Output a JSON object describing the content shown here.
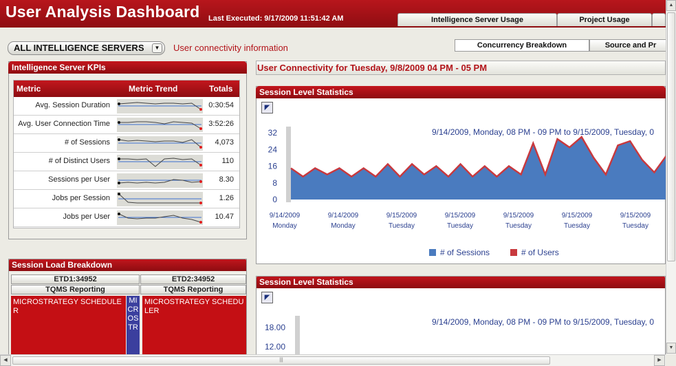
{
  "header": {
    "title": "User Analysis Dashboard",
    "last_executed": "Last Executed:  9/17/2009 11:51:42 AM",
    "tabs": [
      "Intelligence Server Usage",
      "Project Usage",
      ""
    ]
  },
  "selector": {
    "value": "ALL INTELLIGENCE SERVERS",
    "dropdown_icon": "chevron-down-icon"
  },
  "connectivity_link": "User connectivity information",
  "subtabs": [
    "Concurrency Breakdown",
    "Source and Pr"
  ],
  "kpi_panel": {
    "title": "Intelligence Server KPIs",
    "columns": [
      "Metric",
      "Metric Trend",
      "Totals"
    ],
    "rows": [
      {
        "metric": "Avg. Session Duration",
        "total": "0:30:54"
      },
      {
        "metric": "Avg. User Connection Time",
        "total": "3:52:26"
      },
      {
        "metric": "# of Sessions",
        "total": "4,073"
      },
      {
        "metric": "# of Distinct Users",
        "total": "110"
      },
      {
        "metric": "Sessions per User",
        "total": "8.30"
      },
      {
        "metric": "Jobs per Session",
        "total": "1.26"
      },
      {
        "metric": "Jobs per User",
        "total": "10.47"
      }
    ]
  },
  "connectivity_title": "User Connectivity for Tuesday, 9/8/2009 04 PM - 05 PM",
  "session_chart_1": {
    "title": "Session Level Statistics",
    "subtitle": "9/14/2009, Monday, 08 PM - 09 PM to 9/15/2009, Tuesday, 0",
    "legend": [
      "# of Sessions",
      "# of Users"
    ],
    "colors": {
      "sessions": "#4a7bbf",
      "users": "#c8393e"
    }
  },
  "session_chart_2": {
    "title": "Session Level Statistics",
    "subtitle": "9/14/2009, Monday, 08 PM - 09 PM to 9/15/2009, Tuesday, 0"
  },
  "chart_data": [
    {
      "type": "area",
      "title": "Session Level Statistics",
      "subtitle": "9/14/2009, Monday, 08 PM - 09 PM to 9/15/2009, Tuesday, 0",
      "y_ticks": [
        "32",
        "24",
        "16",
        "8",
        "0"
      ],
      "ylim": [
        0,
        32
      ],
      "x_labels": [
        {
          "date": "9/14/2009",
          "day": "Monday"
        },
        {
          "date": "9/14/2009",
          "day": "Monday"
        },
        {
          "date": "9/15/2009",
          "day": "Tuesday"
        },
        {
          "date": "9/15/2009",
          "day": "Tuesday"
        },
        {
          "date": "9/15/2009",
          "day": "Tuesday"
        },
        {
          "date": "9/15/2009",
          "day": "Tuesday"
        },
        {
          "date": "9/15/2009",
          "day": "Tuesday"
        }
      ],
      "series": [
        {
          "name": "# of Sessions",
          "values": [
            15,
            11,
            15,
            12,
            15,
            11,
            15,
            11,
            17,
            11,
            17,
            12,
            16,
            11,
            17,
            11,
            16,
            11,
            16,
            12,
            27,
            12,
            29,
            25,
            30,
            20,
            12,
            26,
            28,
            19,
            13,
            21
          ]
        },
        {
          "name": "# of Users",
          "values": [
            15,
            11,
            15,
            12,
            15,
            11,
            15,
            11,
            17,
            11,
            17,
            12,
            16,
            11,
            17,
            11,
            16,
            11,
            16,
            12,
            27,
            12,
            29,
            25,
            30,
            20,
            12,
            26,
            28,
            19,
            13,
            21
          ]
        }
      ],
      "legend": [
        "# of Sessions",
        "# of Users"
      ]
    },
    {
      "type": "area",
      "title": "Session Level Statistics",
      "subtitle": "9/14/2009, Monday, 08 PM - 09 PM to 9/15/2009, Tuesday, 0",
      "y_ticks": [
        "18.00",
        "12.00"
      ]
    }
  ],
  "session_load": {
    "title": "Session Load Breakdown",
    "servers": [
      {
        "name": "ETD1:34952",
        "project": "TQMS Reporting",
        "block": "MICROSTRATEGY SCHEDULER",
        "side_block": "MICROSTR"
      },
      {
        "name": "ETD2:34952",
        "project": "TQMS Reporting",
        "block": "MICROSTRATEGY SCHEDULER"
      }
    ]
  },
  "scrollbar_icons": {
    "up": "scroll-up-icon",
    "down": "scroll-down-icon",
    "left": "scroll-left-icon",
    "right": "scroll-right-icon"
  }
}
